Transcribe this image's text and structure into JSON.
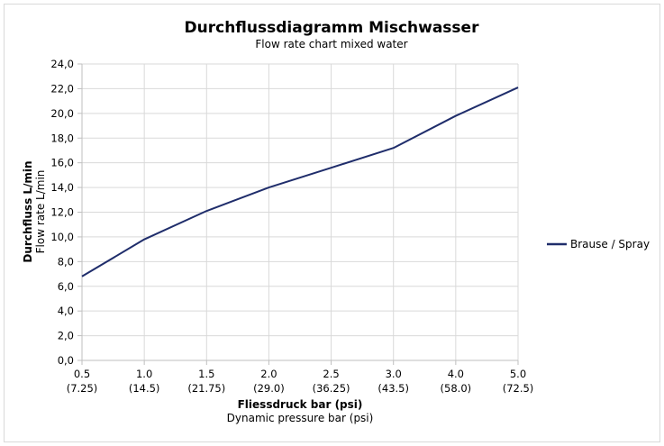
{
  "chart_data": {
    "type": "line",
    "title": "Durchflussdiagramm Mischwasser",
    "subtitle": "Flow rate chart mixed water",
    "xlabel": "Fliessdruck bar (psi)",
    "xlabel_sub": "Dynamic pressure bar (psi)",
    "ylabel": "Durchfluss L/min",
    "ylabel_sub": "Flow rate L/min",
    "categories": [
      "0.5",
      "1.0",
      "1.5",
      "2.0",
      "2.5",
      "3.0",
      "4.0",
      "5.0"
    ],
    "categories_sub": [
      "(7.25)",
      "(14.5)",
      "(21.75)",
      "(29.0)",
      "(36.25)",
      "(43.5)",
      "(58.0)",
      "(72.5)"
    ],
    "y_ticks": [
      "0,0",
      "2,0",
      "4,0",
      "6,0",
      "8,0",
      "10,0",
      "12,0",
      "14,0",
      "16,0",
      "18,0",
      "20,0",
      "22,0",
      "24,0"
    ],
    "ylim": [
      0,
      24
    ],
    "grid": true,
    "legend_position": "right",
    "series": [
      {
        "name": "Brause / Spray",
        "color": "#1f2d6b",
        "values": [
          6.8,
          9.8,
          12.1,
          14.0,
          15.6,
          17.2,
          19.8,
          22.1
        ]
      }
    ]
  }
}
